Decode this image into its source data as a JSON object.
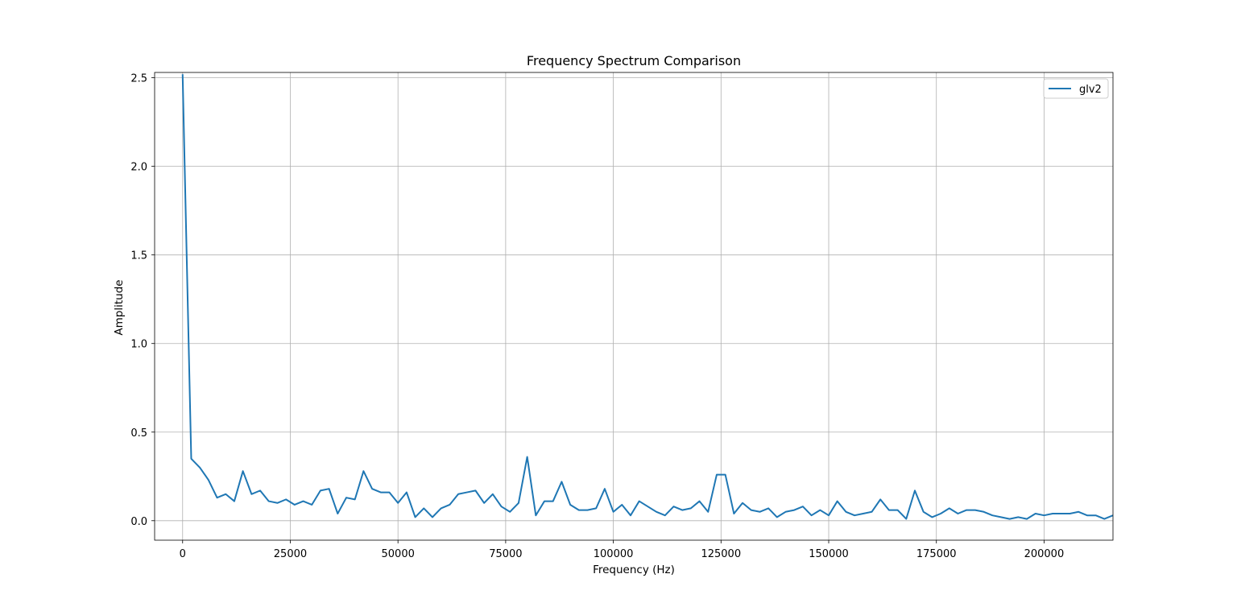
{
  "chart_data": {
    "type": "line",
    "title": "Frequency Spectrum Comparison",
    "xlabel": "Frequency (Hz)",
    "ylabel": "Amplitude",
    "xlim": [
      -6500,
      216000
    ],
    "ylim": [
      -0.11,
      2.53
    ],
    "xticks": [
      0,
      25000,
      50000,
      75000,
      100000,
      125000,
      150000,
      175000,
      200000
    ],
    "xtick_labels": [
      "0",
      "25000",
      "50000",
      "75000",
      "100000",
      "125000",
      "150000",
      "175000",
      "200000"
    ],
    "yticks": [
      0.0,
      0.5,
      1.0,
      1.5,
      2.0,
      2.5
    ],
    "ytick_labels": [
      "0.0",
      "0.5",
      "1.0",
      "1.5",
      "2.0",
      "2.5"
    ],
    "grid": true,
    "legend_position": "top-right",
    "series": [
      {
        "name": "glv2",
        "color": "#1f77b4",
        "x": [
          0,
          2000,
          4000,
          6000,
          8000,
          10000,
          12000,
          14000,
          16000,
          18000,
          20000,
          22000,
          24000,
          26000,
          28000,
          30000,
          32000,
          34000,
          36000,
          38000,
          40000,
          42000,
          44000,
          46000,
          48000,
          50000,
          52000,
          54000,
          56000,
          58000,
          60000,
          62000,
          64000,
          66000,
          68000,
          70000,
          72000,
          74000,
          76000,
          78000,
          80000,
          82000,
          84000,
          86000,
          88000,
          90000,
          92000,
          94000,
          96000,
          98000,
          100000,
          102000,
          104000,
          106000,
          108000,
          110000,
          112000,
          114000,
          116000,
          118000,
          120000,
          122000,
          124000,
          126000,
          128000,
          130000,
          132000,
          134000,
          136000,
          138000,
          140000,
          142000,
          144000,
          146000,
          148000,
          150000,
          152000,
          154000,
          156000,
          158000,
          160000,
          162000,
          164000,
          166000,
          168000,
          170000,
          172000,
          174000,
          176000,
          178000,
          180000,
          182000,
          184000,
          186000,
          188000,
          190000,
          192000,
          194000,
          196000,
          198000,
          200000,
          202000,
          204000,
          206000,
          208000,
          210000,
          212000,
          214000,
          216000
        ],
        "y": [
          2.52,
          0.35,
          0.3,
          0.23,
          0.13,
          0.15,
          0.11,
          0.28,
          0.15,
          0.17,
          0.11,
          0.1,
          0.12,
          0.09,
          0.11,
          0.09,
          0.17,
          0.18,
          0.04,
          0.13,
          0.12,
          0.28,
          0.18,
          0.16,
          0.16,
          0.1,
          0.16,
          0.02,
          0.07,
          0.02,
          0.07,
          0.09,
          0.15,
          0.16,
          0.17,
          0.1,
          0.15,
          0.08,
          0.05,
          0.1,
          0.36,
          0.03,
          0.11,
          0.11,
          0.22,
          0.09,
          0.06,
          0.06,
          0.07,
          0.18,
          0.05,
          0.09,
          0.03,
          0.11,
          0.08,
          0.05,
          0.03,
          0.08,
          0.06,
          0.07,
          0.11,
          0.05,
          0.26,
          0.26,
          0.04,
          0.1,
          0.06,
          0.05,
          0.07,
          0.02,
          0.05,
          0.06,
          0.08,
          0.03,
          0.06,
          0.03,
          0.11,
          0.05,
          0.03,
          0.04,
          0.05,
          0.12,
          0.06,
          0.06,
          0.01,
          0.17,
          0.05,
          0.02,
          0.04,
          0.07,
          0.04,
          0.06,
          0.06,
          0.05,
          0.03,
          0.02,
          0.01,
          0.02,
          0.01,
          0.04,
          0.03,
          0.04,
          0.04,
          0.04,
          0.05,
          0.03,
          0.03,
          0.01,
          0.03
        ]
      }
    ]
  }
}
